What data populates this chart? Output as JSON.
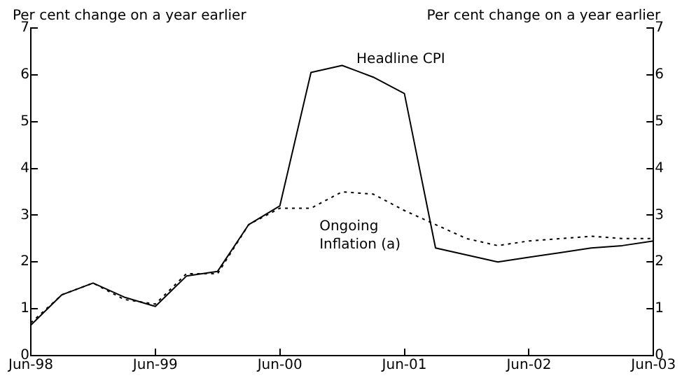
{
  "chart_data": {
    "type": "line",
    "ylabel": "Per cent change on a year earlier",
    "y2label": "Per cent change on a year earlier",
    "categories": [
      "Jun-98",
      null,
      null,
      null,
      "Jun-99",
      null,
      null,
      null,
      "Jun-00",
      null,
      null,
      null,
      "Jun-01",
      null,
      null,
      null,
      "Jun-02",
      null,
      null,
      null,
      "Jun-03"
    ],
    "series": [
      {
        "name": "Headline CPI",
        "color": "#000000",
        "line_style": "solid",
        "values": [
          0.65,
          1.3,
          1.55,
          1.25,
          1.05,
          1.7,
          1.8,
          2.8,
          3.2,
          6.05,
          6.2,
          5.95,
          5.6,
          2.3,
          2.15,
          2.0,
          2.1,
          2.2,
          2.3,
          2.35,
          2.45
        ]
      },
      {
        "name": "Ongoing Inflation (a)",
        "color": "#000000",
        "line_style": "dotted",
        "values": [
          0.7,
          1.3,
          1.55,
          1.2,
          1.1,
          1.75,
          1.75,
          2.8,
          3.15,
          3.15,
          3.5,
          3.45,
          3.1,
          2.8,
          2.5,
          2.35,
          2.45,
          2.5,
          2.55,
          2.5,
          2.5
        ]
      }
    ],
    "ylim": [
      0,
      7
    ],
    "yticks": [
      0,
      1,
      2,
      3,
      4,
      5,
      6,
      7
    ],
    "y2lim": [
      0,
      7
    ],
    "y2ticks": [
      0,
      1,
      2,
      3,
      4,
      5,
      6,
      7
    ],
    "grid": false,
    "legend": false,
    "marker": "none"
  }
}
